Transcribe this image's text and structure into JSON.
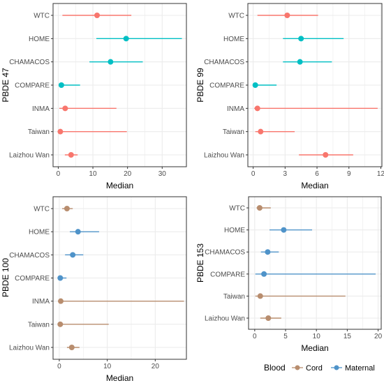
{
  "chart_data": [
    {
      "type": "forest",
      "ylabel": "PBDE 47",
      "xlabel": "Median",
      "xlim": [
        -1.5,
        37
      ],
      "xticks": [
        0,
        10,
        20,
        30
      ],
      "categories": [
        "WTC",
        "HOME",
        "CHAMACOS",
        "COMPARE",
        "INMA",
        "Taiwan",
        "Laizhou Wan"
      ],
      "points": [
        {
          "study": "WTC",
          "group": "Cord",
          "median": 11.2,
          "low": 1.2,
          "high": 21.1
        },
        {
          "study": "HOME",
          "group": "Maternal",
          "median": 19.6,
          "low": 11,
          "high": 35.7
        },
        {
          "study": "CHAMACOS",
          "group": "Maternal",
          "median": 15.1,
          "low": 9,
          "high": 24.4
        },
        {
          "study": "COMPARE",
          "group": "Maternal",
          "median": 0.9,
          "low": 0.4,
          "high": 6.3
        },
        {
          "study": "INMA",
          "group": "Cord",
          "median": 2.0,
          "low": 0.3,
          "high": 16.8
        },
        {
          "study": "Taiwan",
          "group": "Cord",
          "median": 0.6,
          "low": 0.1,
          "high": 19.8
        },
        {
          "study": "Laizhou Wan",
          "group": "Cord",
          "median": 3.7,
          "low": 1.9,
          "high": 5.6
        }
      ]
    },
    {
      "type": "forest",
      "ylabel": "PBDE 99",
      "xlabel": "Median",
      "xlim": [
        -0.5,
        12.1
      ],
      "xticks": [
        0,
        3,
        6,
        9,
        12
      ],
      "categories": [
        "WTC",
        "HOME",
        "CHAMACOS",
        "COMPARE",
        "INMA",
        "Taiwan",
        "Laizhou Wan"
      ],
      "points": [
        {
          "study": "WTC",
          "group": "Cord",
          "median": 3.2,
          "low": 0.4,
          "high": 6.1
        },
        {
          "study": "HOME",
          "group": "Maternal",
          "median": 4.5,
          "low": 2.8,
          "high": 8.5
        },
        {
          "study": "CHAMACOS",
          "group": "Maternal",
          "median": 4.4,
          "low": 2.8,
          "high": 7.4
        },
        {
          "study": "COMPARE",
          "group": "Maternal",
          "median": 0.2,
          "low": 0.1,
          "high": 2.2
        },
        {
          "study": "INMA",
          "group": "Cord",
          "median": 0.4,
          "low": 0.1,
          "high": 11.7
        },
        {
          "study": "Taiwan",
          "group": "Cord",
          "median": 0.7,
          "low": 0.2,
          "high": 3.9
        },
        {
          "study": "Laizhou Wan",
          "group": "Cord",
          "median": 6.8,
          "low": 4.3,
          "high": 9.4
        }
      ]
    },
    {
      "type": "forest",
      "ylabel": "PBDE 100",
      "xlabel": "Median",
      "xlim": [
        -1.3,
        26.5
      ],
      "xticks": [
        0,
        10,
        20
      ],
      "categories": [
        "WTC",
        "HOME",
        "CHAMACOS",
        "COMPARE",
        "INMA",
        "Taiwan",
        "Laizhou Wan"
      ],
      "points": [
        {
          "study": "WTC",
          "group": "Cord",
          "median": 1.6,
          "low": 0.6,
          "high": 2.8
        },
        {
          "study": "HOME",
          "group": "Maternal",
          "median": 3.9,
          "low": 2.2,
          "high": 8.3
        },
        {
          "study": "CHAMACOS",
          "group": "Maternal",
          "median": 2.8,
          "low": 1.2,
          "high": 5.0
        },
        {
          "study": "COMPARE",
          "group": "Maternal",
          "median": 0.2,
          "low": 0.1,
          "high": 1.5
        },
        {
          "study": "INMA",
          "group": "Cord",
          "median": 0.3,
          "low": 0.1,
          "high": 26.0
        },
        {
          "study": "Taiwan",
          "group": "Cord",
          "median": 0.2,
          "low": 0.1,
          "high": 10.3
        },
        {
          "study": "Laizhou Wan",
          "group": "Cord",
          "median": 2.6,
          "low": 1.6,
          "high": 4.2
        }
      ]
    },
    {
      "type": "forest",
      "ylabel": "PBDE 153",
      "xlabel": "Median",
      "xlim": [
        -1,
        20.5
      ],
      "xticks": [
        0,
        5,
        10,
        15,
        20
      ],
      "categories": [
        "WTC",
        "HOME",
        "CHAMACOS",
        "COMPARE",
        "Taiwan",
        "Laizhou Wan"
      ],
      "points": [
        {
          "study": "WTC",
          "group": "Cord",
          "median": 0.8,
          "low": 0.3,
          "high": 2.6
        },
        {
          "study": "HOME",
          "group": "Maternal",
          "median": 4.7,
          "low": 2.4,
          "high": 9.3
        },
        {
          "study": "CHAMACOS",
          "group": "Maternal",
          "median": 2.1,
          "low": 1.0,
          "high": 3.9
        },
        {
          "study": "COMPARE",
          "group": "Maternal",
          "median": 1.5,
          "low": 0.1,
          "high": 19.6
        },
        {
          "study": "Taiwan",
          "group": "Cord",
          "median": 0.9,
          "low": 0.1,
          "high": 14.7
        },
        {
          "study": "Laizhou Wan",
          "group": "Cord",
          "median": 2.2,
          "low": 0.9,
          "high": 4.3
        }
      ]
    }
  ],
  "legend": {
    "title": "Blood",
    "items": [
      {
        "label": "Cord",
        "group": "Cord"
      },
      {
        "label": "Maternal",
        "group": "Maternal"
      }
    ]
  },
  "colors": {
    "panel_1_2": {
      "Cord": "#f8766d",
      "Maternal": "#00bfc4"
    },
    "panel_3_4": {
      "Cord": "#b88d6e",
      "Maternal": "#4f93c9"
    },
    "grid": "#ebebeb",
    "border": "#333333"
  }
}
